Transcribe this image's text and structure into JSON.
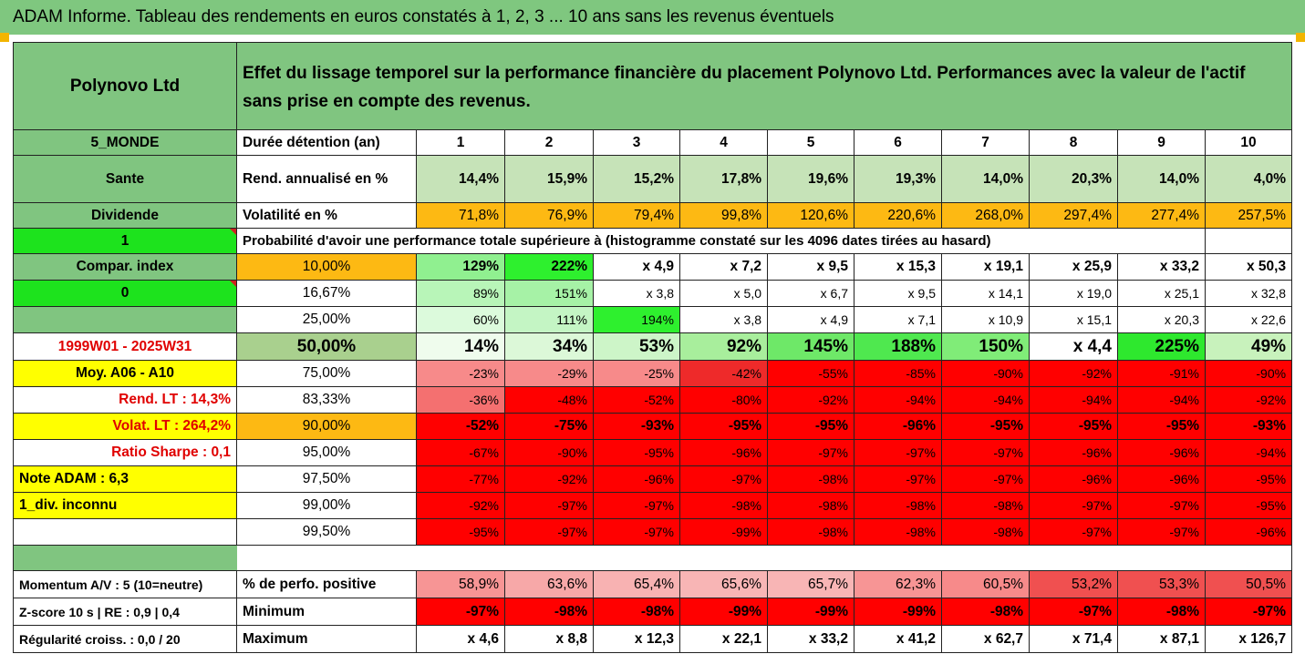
{
  "title": "ADAM Informe. Tableau des rendements en euros constatés à 1, 2, 3 ... 10 ans sans les revenus éventuels",
  "colors": {
    "header_green": "#80c580",
    "light_green": "#c6e3b8",
    "orange": "#fdb913",
    "bright_green": "#1de31d",
    "yellow": "#ffff00",
    "red": "#ff0000",
    "pink": "#f78a8a"
  },
  "asset_name": "Polynovo Ltd",
  "description": "Effet du lissage temporel sur la performance financière du placement Polynovo Ltd. Performances avec la valeur de l'actif sans prise en compte des revenus.",
  "left": {
    "region": "5_MONDE",
    "sector": "Sante",
    "dividend_label": "Dividende",
    "dividend_value": "1",
    "compar_label": "Compar. index",
    "compar_value": "0",
    "period": "1999W01 - 2025W31",
    "moy": "Moy. A06 - A10",
    "rend_lt": "Rend. LT :   14,3%",
    "volat_lt": "Volat. LT :   264,2%",
    "sharpe": "Ratio Sharpe :   0,1",
    "note": "Note ADAM : 6,3",
    "div": "1_div. inconnu",
    "momentum": "Momentum A/V : 5 (10=neutre)",
    "zscore": "Z-score 10 s  |  RE : 0,9  |  0,4",
    "regularite": "Régularité croiss. : 0,0 / 20"
  },
  "labels": {
    "duree": "Durée détention (an)",
    "rend": "Rend. annualisé en %",
    "vol": "Volatilité en %",
    "proba": "Probabilité d'avoir une performance totale supérieure à (histogramme constaté sur les 4096 dates tirées au hasard)",
    "perf_pos": "% de perfo. positive",
    "minimum": "Minimum",
    "maximum": "Maximum"
  },
  "years": [
    "1",
    "2",
    "3",
    "4",
    "5",
    "6",
    "7",
    "8",
    "9",
    "10"
  ],
  "rend": [
    "14,4%",
    "15,9%",
    "15,2%",
    "17,8%",
    "19,6%",
    "19,3%",
    "14,0%",
    "20,3%",
    "14,0%",
    "4,0%"
  ],
  "vol": [
    "71,8%",
    "76,9%",
    "79,4%",
    "99,8%",
    "120,6%",
    "220,6%",
    "268,0%",
    "297,4%",
    "277,4%",
    "257,5%"
  ],
  "quantiles": [
    {
      "p": "10,00%",
      "v": [
        "129%",
        "222%",
        "x 4,9",
        "x 7,2",
        "x 9,5",
        "x 15,3",
        "x 19,1",
        "x 25,9",
        "x 33,2",
        "x 50,3"
      ]
    },
    {
      "p": "16,67%",
      "v": [
        "89%",
        "151%",
        "x 3,8",
        "x 5,0",
        "x 6,7",
        "x 9,5",
        "x 14,1",
        "x 19,0",
        "x 25,1",
        "x 32,8"
      ]
    },
    {
      "p": "25,00%",
      "v": [
        "60%",
        "111%",
        "194%",
        "x 3,8",
        "x 4,9",
        "x 7,1",
        "x 10,9",
        "x 15,1",
        "x 20,3",
        "x 22,6"
      ]
    },
    {
      "p": "50,00%",
      "v": [
        "14%",
        "34%",
        "53%",
        "92%",
        "145%",
        "188%",
        "150%",
        "x 4,4",
        "225%",
        "49%"
      ]
    },
    {
      "p": "75,00%",
      "v": [
        "-23%",
        "-29%",
        "-25%",
        "-42%",
        "-55%",
        "-85%",
        "-90%",
        "-92%",
        "-91%",
        "-90%"
      ]
    },
    {
      "p": "83,33%",
      "v": [
        "-36%",
        "-48%",
        "-52%",
        "-80%",
        "-92%",
        "-94%",
        "-94%",
        "-94%",
        "-94%",
        "-92%"
      ]
    },
    {
      "p": "90,00%",
      "v": [
        "-52%",
        "-75%",
        "-93%",
        "-95%",
        "-95%",
        "-96%",
        "-95%",
        "-95%",
        "-95%",
        "-93%"
      ]
    },
    {
      "p": "95,00%",
      "v": [
        "-67%",
        "-90%",
        "-95%",
        "-96%",
        "-97%",
        "-97%",
        "-97%",
        "-96%",
        "-96%",
        "-94%"
      ]
    },
    {
      "p": "97,50%",
      "v": [
        "-77%",
        "-92%",
        "-96%",
        "-97%",
        "-98%",
        "-97%",
        "-97%",
        "-96%",
        "-96%",
        "-95%"
      ]
    },
    {
      "p": "99,00%",
      "v": [
        "-92%",
        "-97%",
        "-97%",
        "-98%",
        "-98%",
        "-98%",
        "-98%",
        "-97%",
        "-97%",
        "-95%"
      ]
    },
    {
      "p": "99,50%",
      "v": [
        "-95%",
        "-97%",
        "-97%",
        "-99%",
        "-98%",
        "-98%",
        "-98%",
        "-97%",
        "-97%",
        "-96%"
      ]
    }
  ],
  "perf_pos": [
    "58,9%",
    "63,6%",
    "65,4%",
    "65,6%",
    "65,7%",
    "62,3%",
    "60,5%",
    "53,2%",
    "53,3%",
    "50,5%"
  ],
  "minimum": [
    "-97%",
    "-98%",
    "-98%",
    "-99%",
    "-99%",
    "-99%",
    "-98%",
    "-97%",
    "-98%",
    "-97%"
  ],
  "maximum": [
    "x 4,6",
    "x 8,8",
    "x 12,3",
    "x 22,1",
    "x 33,2",
    "x 41,2",
    "x 62,7",
    "x 71,4",
    "x 87,1",
    "x 126,7"
  ]
}
